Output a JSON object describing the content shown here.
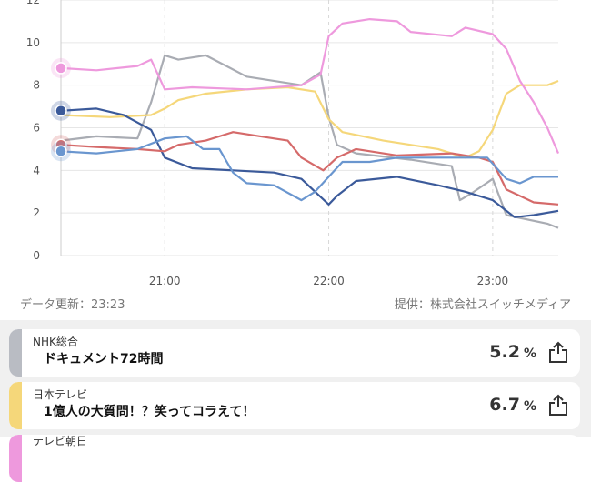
{
  "footer": {
    "updated": "データ更新：23:23",
    "provider": "提供：株式会社スイッチメディア"
  },
  "chart_data": {
    "type": "line",
    "x_ticks": [
      "21:00",
      "22:00",
      "23:00"
    ],
    "y_ticks": [
      0,
      2,
      4,
      6,
      8,
      10,
      12
    ],
    "ylim": [
      0,
      12
    ],
    "xlim": [
      "20:22",
      "23:24"
    ],
    "grid": true,
    "series": [
      {
        "color": "#a9acb3",
        "points": [
          [
            "20:22",
            5.4
          ],
          [
            "20:35",
            5.6
          ],
          [
            "20:50",
            5.5
          ],
          [
            "20:55",
            7.2
          ],
          [
            "21:00",
            9.4
          ],
          [
            "21:05",
            9.2
          ],
          [
            "21:15",
            9.4
          ],
          [
            "21:30",
            8.4
          ],
          [
            "21:50",
            8.0
          ],
          [
            "21:57",
            8.6
          ],
          [
            "22:00",
            6.5
          ],
          [
            "22:03",
            5.2
          ],
          [
            "22:10",
            4.8
          ],
          [
            "22:30",
            4.5
          ],
          [
            "22:45",
            4.2
          ],
          [
            "23:00",
            3.6
          ],
          [
            "22:48",
            2.6
          ],
          [
            "22:52",
            2.9
          ],
          [
            "23:05",
            1.9
          ],
          [
            "23:20",
            1.5
          ],
          [
            "23:24",
            1.3
          ]
        ]
      },
      {
        "color": "#f5d77a",
        "points": [
          [
            "20:22",
            6.6
          ],
          [
            "20:40",
            6.5
          ],
          [
            "20:55",
            6.6
          ],
          [
            "21:00",
            6.9
          ],
          [
            "21:05",
            7.3
          ],
          [
            "21:15",
            7.6
          ],
          [
            "21:30",
            7.8
          ],
          [
            "21:45",
            7.9
          ],
          [
            "21:55",
            7.7
          ],
          [
            "22:00",
            6.4
          ],
          [
            "22:05",
            5.8
          ],
          [
            "22:20",
            5.4
          ],
          [
            "22:40",
            5.0
          ],
          [
            "22:50",
            4.6
          ],
          [
            "22:55",
            4.9
          ],
          [
            "23:00",
            5.9
          ],
          [
            "23:05",
            7.6
          ],
          [
            "23:10",
            8.0
          ],
          [
            "23:20",
            8.0
          ],
          [
            "23:24",
            8.2
          ]
        ]
      },
      {
        "color": "#ee99dd",
        "points": [
          [
            "20:22",
            8.8
          ],
          [
            "20:35",
            8.7
          ],
          [
            "20:50",
            8.9
          ],
          [
            "20:55",
            9.2
          ],
          [
            "21:00",
            7.8
          ],
          [
            "21:10",
            7.9
          ],
          [
            "21:30",
            7.8
          ],
          [
            "21:50",
            8.0
          ],
          [
            "21:57",
            8.5
          ],
          [
            "22:00",
            10.3
          ],
          [
            "22:05",
            10.9
          ],
          [
            "22:15",
            11.1
          ],
          [
            "22:25",
            11.0
          ],
          [
            "22:30",
            10.5
          ],
          [
            "22:45",
            10.3
          ],
          [
            "22:50",
            10.7
          ],
          [
            "23:00",
            10.4
          ],
          [
            "23:05",
            9.7
          ],
          [
            "23:10",
            8.2
          ],
          [
            "23:15",
            7.2
          ],
          [
            "23:20",
            6.0
          ],
          [
            "23:24",
            4.8
          ]
        ]
      },
      {
        "color": "#3b5a9a",
        "points": [
          [
            "20:22",
            6.8
          ],
          [
            "20:35",
            6.9
          ],
          [
            "20:45",
            6.6
          ],
          [
            "20:55",
            5.9
          ],
          [
            "21:00",
            4.6
          ],
          [
            "21:10",
            4.1
          ],
          [
            "21:25",
            4.0
          ],
          [
            "21:40",
            3.9
          ],
          [
            "21:50",
            3.6
          ],
          [
            "21:55",
            3.0
          ],
          [
            "22:00",
            2.4
          ],
          [
            "22:03",
            2.8
          ],
          [
            "22:10",
            3.5
          ],
          [
            "22:25",
            3.7
          ],
          [
            "22:40",
            3.3
          ],
          [
            "22:50",
            3.0
          ],
          [
            "23:00",
            2.6
          ],
          [
            "23:08",
            1.8
          ],
          [
            "23:15",
            1.9
          ],
          [
            "23:24",
            2.1
          ]
        ]
      },
      {
        "color": "#d56a6a",
        "points": [
          [
            "20:22",
            5.2
          ],
          [
            "20:35",
            5.1
          ],
          [
            "20:50",
            5.0
          ],
          [
            "21:00",
            4.9
          ],
          [
            "21:05",
            5.2
          ],
          [
            "21:15",
            5.4
          ],
          [
            "21:25",
            5.8
          ],
          [
            "21:35",
            5.6
          ],
          [
            "21:45",
            5.4
          ],
          [
            "21:50",
            4.6
          ],
          [
            "21:58",
            4.0
          ],
          [
            "22:03",
            4.6
          ],
          [
            "22:10",
            5.0
          ],
          [
            "22:25",
            4.7
          ],
          [
            "22:45",
            4.8
          ],
          [
            "22:55",
            4.6
          ],
          [
            "23:00",
            4.4
          ],
          [
            "23:05",
            3.1
          ],
          [
            "23:15",
            2.5
          ],
          [
            "23:24",
            2.4
          ]
        ]
      },
      {
        "color": "#6a96cf",
        "points": [
          [
            "20:22",
            4.9
          ],
          [
            "20:35",
            4.8
          ],
          [
            "20:50",
            5.0
          ],
          [
            "21:00",
            5.5
          ],
          [
            "21:08",
            5.6
          ],
          [
            "21:14",
            5.0
          ],
          [
            "21:20",
            5.0
          ],
          [
            "21:25",
            3.9
          ],
          [
            "21:30",
            3.4
          ],
          [
            "21:40",
            3.3
          ],
          [
            "21:50",
            2.6
          ],
          [
            "21:55",
            3.0
          ],
          [
            "22:00",
            3.7
          ],
          [
            "22:05",
            4.4
          ],
          [
            "22:15",
            4.4
          ],
          [
            "22:25",
            4.6
          ],
          [
            "22:35",
            4.6
          ],
          [
            "22:50",
            4.6
          ],
          [
            "22:58",
            4.6
          ],
          [
            "23:05",
            3.6
          ],
          [
            "23:10",
            3.4
          ],
          [
            "23:15",
            3.7
          ],
          [
            "23:24",
            3.7
          ]
        ]
      }
    ],
    "markers": [
      {
        "color": "#ee99dd",
        "x": "20:22",
        "y": 8.8
      },
      {
        "color": "#3b5a9a",
        "x": "20:22",
        "y": 6.8
      },
      {
        "color": "#d56a6a",
        "x": "20:22",
        "y": 5.2
      },
      {
        "color": "#6a96cf",
        "x": "20:22",
        "y": 4.9
      }
    ]
  },
  "programs": [
    {
      "channel": "NHK総合",
      "title": "ドキュメント72時間",
      "rating": "5.2",
      "unit": "%",
      "color": "#b9bcc3"
    },
    {
      "channel": "日本テレビ",
      "title": "1億人の大質問！？笑ってコラえて！",
      "rating": "6.7",
      "unit": "%",
      "color": "#f5d77a"
    },
    {
      "channel": "テレビ朝日",
      "title": "",
      "rating": "",
      "unit": "",
      "color": "#ee99dd"
    }
  ]
}
